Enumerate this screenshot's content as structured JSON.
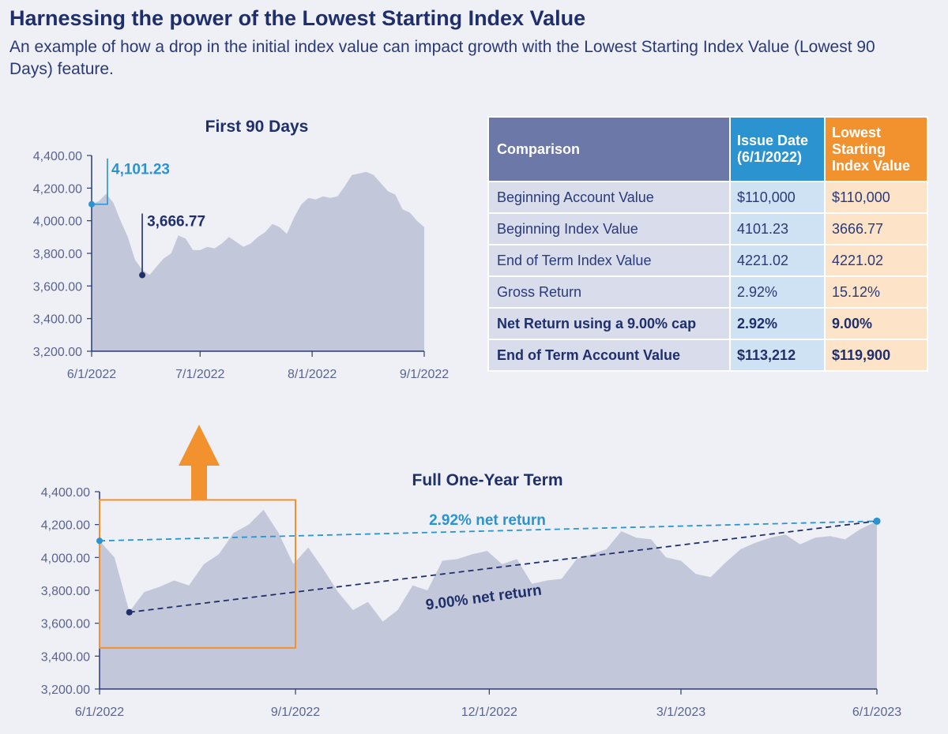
{
  "page": {
    "title": "Harnessing the power of the Lowest Starting Index Value",
    "subtitle": "An example of how a drop in the initial index value can impact growth with the Lowest Starting Index Value (Lowest 90 Days) feature."
  },
  "colors": {
    "area": "#c2c7d9",
    "navy": "#1f2f6b",
    "blue": "#2b93cf",
    "orange": "#f2922f",
    "tableHeader": "#6b78a8"
  },
  "table": {
    "headers": [
      "Comparison",
      "Issue Date (6/1/2022)",
      "Lowest Starting Index Value"
    ],
    "rows": [
      {
        "label": "Beginning Account Value",
        "issue": "$110,000",
        "lowest": "$110,000",
        "bold": false
      },
      {
        "label": "Beginning Index Value",
        "issue": "4101.23",
        "lowest": "3666.77",
        "bold": false
      },
      {
        "label": "End of Term Index Value",
        "issue": "4221.02",
        "lowest": "4221.02",
        "bold": false
      },
      {
        "label": "Gross Return",
        "issue": "2.92%",
        "lowest": "15.12%",
        "bold": false
      },
      {
        "label": "Net Return using a 9.00% cap",
        "issue": "2.92%",
        "lowest": "9.00%",
        "bold": true
      },
      {
        "label": "End of Term Account Value",
        "issue": "$113,212",
        "lowest": "$119,900",
        "bold": true
      }
    ]
  },
  "chart_data": [
    {
      "type": "area",
      "title": "First 90 Days",
      "xlabel": "",
      "ylabel": "",
      "ylim": [
        3200,
        4400
      ],
      "yticks": [
        3200,
        3400,
        3600,
        3800,
        4000,
        4200,
        4400
      ],
      "ytick_labels": [
        "3,200.00",
        "3,400.00",
        "3,600.00",
        "3,800.00",
        "4,000.00",
        "4,200.00",
        "4,400.00"
      ],
      "xlim": [
        "2022-06-01",
        "2022-09-01"
      ],
      "xtick_labels": [
        "6/1/2022",
        "7/1/2022",
        "8/1/2022",
        "9/1/2022"
      ],
      "xticks": [
        "2022-06-01",
        "2022-07-01",
        "2022-08-01",
        "2022-09-01"
      ],
      "grid": false,
      "x": [
        "2022-06-01",
        "2022-06-03",
        "2022-06-05",
        "2022-06-07",
        "2022-06-09",
        "2022-06-11",
        "2022-06-13",
        "2022-06-15",
        "2022-06-17",
        "2022-06-19",
        "2022-06-21",
        "2022-06-23",
        "2022-06-25",
        "2022-06-27",
        "2022-06-29",
        "2022-07-01",
        "2022-07-03",
        "2022-07-05",
        "2022-07-07",
        "2022-07-09",
        "2022-07-11",
        "2022-07-13",
        "2022-07-15",
        "2022-07-17",
        "2022-07-19",
        "2022-07-21",
        "2022-07-23",
        "2022-07-25",
        "2022-07-27",
        "2022-07-29",
        "2022-07-31",
        "2022-08-02",
        "2022-08-04",
        "2022-08-06",
        "2022-08-08",
        "2022-08-10",
        "2022-08-12",
        "2022-08-14",
        "2022-08-16",
        "2022-08-18",
        "2022-08-20",
        "2022-08-22",
        "2022-08-24",
        "2022-08-26",
        "2022-08-28",
        "2022-08-30",
        "2022-09-01"
      ],
      "values": [
        4101,
        4120,
        4165,
        4110,
        4000,
        3900,
        3760,
        3700,
        3667,
        3720,
        3770,
        3800,
        3910,
        3890,
        3820,
        3820,
        3840,
        3830,
        3860,
        3900,
        3870,
        3840,
        3860,
        3900,
        3930,
        3980,
        3960,
        3920,
        4020,
        4100,
        4140,
        4130,
        4150,
        4140,
        4150,
        4210,
        4280,
        4290,
        4300,
        4280,
        4230,
        4180,
        4160,
        4070,
        4050,
        4000,
        3960
      ],
      "annotations": [
        {
          "label": "4,101.23",
          "x": "2022-06-01",
          "y": 4101.23,
          "color": "#2b93cf"
        },
        {
          "label": "3,666.77",
          "x": "2022-06-15",
          "y": 3666.77,
          "color": "#1f2f6b"
        }
      ]
    },
    {
      "type": "area",
      "title": "Full One-Year Term",
      "xlabel": "",
      "ylabel": "",
      "ylim": [
        3200,
        4400
      ],
      "yticks": [
        3200,
        3400,
        3600,
        3800,
        4000,
        4200,
        4400
      ],
      "ytick_labels": [
        "3,200.00",
        "3,400.00",
        "3,600.00",
        "3,800.00",
        "4,000.00",
        "4,200.00",
        "4,400.00"
      ],
      "xlim": [
        "2022-06-01",
        "2023-06-01"
      ],
      "xtick_labels": [
        "6/1/2022",
        "9/1/2022",
        "12/1/2022",
        "3/1/2023",
        "6/1/2023"
      ],
      "xticks": [
        "2022-06-01",
        "2022-09-01",
        "2022-12-01",
        "2023-03-01",
        "2023-06-01"
      ],
      "grid": false,
      "x": [
        "2022-06-01",
        "2022-06-08",
        "2022-06-15",
        "2022-06-22",
        "2022-06-29",
        "2022-07-06",
        "2022-07-13",
        "2022-07-20",
        "2022-07-27",
        "2022-08-03",
        "2022-08-10",
        "2022-08-17",
        "2022-08-24",
        "2022-08-31",
        "2022-09-07",
        "2022-09-14",
        "2022-09-21",
        "2022-09-28",
        "2022-10-05",
        "2022-10-12",
        "2022-10-19",
        "2022-10-26",
        "2022-11-02",
        "2022-11-09",
        "2022-11-16",
        "2022-11-23",
        "2022-11-30",
        "2022-12-07",
        "2022-12-14",
        "2022-12-21",
        "2022-12-28",
        "2023-01-04",
        "2023-01-11",
        "2023-01-18",
        "2023-01-25",
        "2023-02-01",
        "2023-02-08",
        "2023-02-15",
        "2023-02-22",
        "2023-03-01",
        "2023-03-08",
        "2023-03-15",
        "2023-03-22",
        "2023-03-29",
        "2023-04-05",
        "2023-04-12",
        "2023-04-19",
        "2023-04-26",
        "2023-05-03",
        "2023-05-10",
        "2023-05-17",
        "2023-05-24",
        "2023-06-01"
      ],
      "values": [
        4101,
        4000,
        3670,
        3790,
        3820,
        3860,
        3830,
        3960,
        4020,
        4150,
        4200,
        4290,
        4150,
        3960,
        4060,
        3930,
        3790,
        3680,
        3730,
        3610,
        3680,
        3830,
        3800,
        3980,
        3990,
        4020,
        4040,
        3960,
        3990,
        3840,
        3860,
        3870,
        3990,
        4020,
        4050,
        4160,
        4120,
        4110,
        4000,
        3980,
        3900,
        3880,
        3970,
        4050,
        4090,
        4120,
        4140,
        4080,
        4120,
        4130,
        4110,
        4170,
        4221
      ],
      "series": [
        {
          "name": "2.92% net return",
          "values": [
            4101.23,
            4221.02
          ],
          "x": [
            "2022-06-01",
            "2023-06-01"
          ],
          "style": "dashed",
          "color": "#2b93cf"
        },
        {
          "name": "9.00% net return",
          "values": [
            3666.77,
            4221.02
          ],
          "x": [
            "2022-06-15",
            "2023-06-01"
          ],
          "style": "dashed",
          "color": "#1f2f6b"
        }
      ],
      "highlight": {
        "x": [
          "2022-06-01",
          "2022-09-01"
        ],
        "y": [
          3450,
          4350
        ],
        "color": "#f2922f"
      }
    }
  ]
}
